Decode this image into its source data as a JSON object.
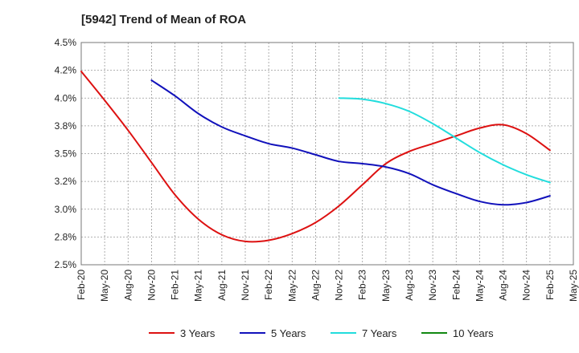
{
  "chart_data": {
    "type": "line",
    "title": "[5942]  Trend of Mean of ROA",
    "xlabel": "",
    "ylabel": "",
    "ylim": [
      2.5,
      4.5
    ],
    "yticks": [
      2.5,
      2.75,
      3.0,
      3.25,
      3.5,
      3.75,
      4.0,
      4.25,
      4.5
    ],
    "ytick_labels": [
      "2.5%",
      "2.8%",
      "3.0%",
      "3.2%",
      "3.5%",
      "3.8%",
      "4.0%",
      "4.2%",
      "4.5%"
    ],
    "x_tick_labels": [
      "Feb-20",
      "May-20",
      "Aug-20",
      "Nov-20",
      "Feb-21",
      "May-21",
      "Aug-21",
      "Nov-21",
      "Feb-22",
      "May-22",
      "Aug-22",
      "Nov-22",
      "Feb-23",
      "May-23",
      "Aug-23",
      "Nov-23",
      "Feb-24",
      "May-24",
      "Aug-24",
      "Nov-24",
      "Feb-25",
      "May-25"
    ],
    "x_unit": "quarter index (0 = Feb-20)",
    "grid": true,
    "legend_position": "bottom",
    "series": [
      {
        "name": "3 Years",
        "color": "#dd1111",
        "points": [
          [
            0,
            4.24
          ],
          [
            1,
            3.98
          ],
          [
            2,
            3.71
          ],
          [
            3,
            3.42
          ],
          [
            4,
            3.13
          ],
          [
            5,
            2.91
          ],
          [
            6,
            2.77
          ],
          [
            7,
            2.71
          ],
          [
            8,
            2.72
          ],
          [
            9,
            2.78
          ],
          [
            10,
            2.88
          ],
          [
            11,
            3.03
          ],
          [
            12,
            3.22
          ],
          [
            13,
            3.41
          ],
          [
            14,
            3.52
          ],
          [
            15,
            3.59
          ],
          [
            16,
            3.66
          ],
          [
            17,
            3.73
          ],
          [
            18,
            3.76
          ],
          [
            19,
            3.68
          ],
          [
            20,
            3.53
          ]
        ]
      },
      {
        "name": "5 Years",
        "color": "#1111bb",
        "points": [
          [
            3,
            4.16
          ],
          [
            4,
            4.02
          ],
          [
            5,
            3.86
          ],
          [
            6,
            3.74
          ],
          [
            7,
            3.66
          ],
          [
            8,
            3.59
          ],
          [
            9,
            3.55
          ],
          [
            10,
            3.49
          ],
          [
            11,
            3.43
          ],
          [
            12,
            3.41
          ],
          [
            13,
            3.38
          ],
          [
            14,
            3.32
          ],
          [
            15,
            3.22
          ],
          [
            16,
            3.14
          ],
          [
            17,
            3.07
          ],
          [
            18,
            3.04
          ],
          [
            19,
            3.06
          ],
          [
            20,
            3.12
          ]
        ]
      },
      {
        "name": "7 Years",
        "color": "#22dddd",
        "points": [
          [
            11,
            4.0
          ],
          [
            12,
            3.99
          ],
          [
            13,
            3.95
          ],
          [
            14,
            3.88
          ],
          [
            15,
            3.77
          ],
          [
            16,
            3.64
          ],
          [
            17,
            3.51
          ],
          [
            18,
            3.4
          ],
          [
            19,
            3.31
          ],
          [
            20,
            3.24
          ]
        ]
      },
      {
        "name": "10 Years",
        "color": "#118811",
        "points": []
      }
    ]
  }
}
